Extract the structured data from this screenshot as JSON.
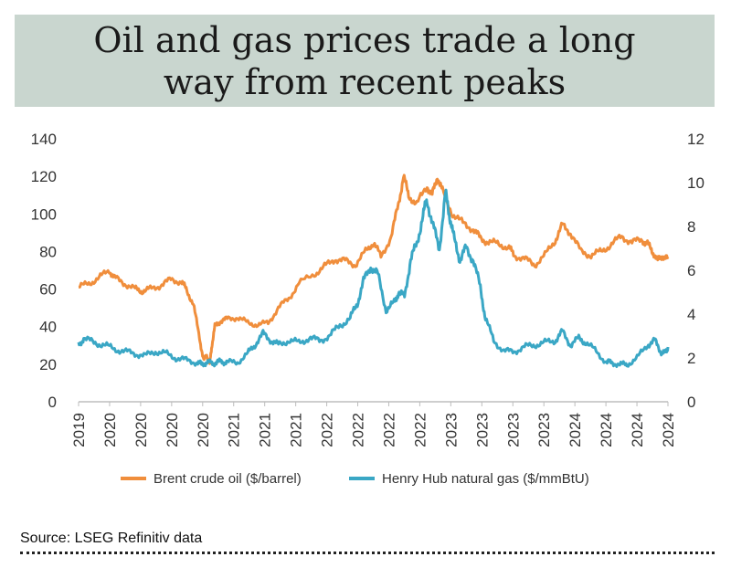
{
  "chart_data": {
    "type": "line",
    "title": "Oil and gas prices trade a long way from recent peaks",
    "x_tick_labels": [
      "2019",
      "2020",
      "2020",
      "2020",
      "2020",
      "2021",
      "2021",
      "2021",
      "2022",
      "2022",
      "2022",
      "2022",
      "2023",
      "2023",
      "2023",
      "2023",
      "2024",
      "2024",
      "2024",
      "2024"
    ],
    "x_range": [
      2019.0,
      2024.75
    ],
    "y_left": {
      "ticks": [
        0,
        20,
        40,
        60,
        80,
        100,
        120,
        140
      ],
      "range": [
        0,
        140
      ]
    },
    "y_right": {
      "ticks": [
        0,
        2,
        4,
        6,
        8,
        10,
        12
      ],
      "range": [
        0,
        12
      ]
    },
    "series": [
      {
        "name": "Brent crude oil ($/barrel)",
        "axis": "left",
        "color": "#f08e3c",
        "x": [
          2019.0,
          2019.1,
          2019.2,
          2019.3,
          2019.35,
          2019.45,
          2019.55,
          2019.62,
          2019.7,
          2019.8,
          2019.9,
          2020.0,
          2020.05,
          2020.12,
          2020.18,
          2020.22,
          2020.25,
          2020.28,
          2020.3,
          2020.33,
          2020.38,
          2020.45,
          2020.55,
          2020.65,
          2020.75,
          2020.85,
          2020.95,
          2021.05,
          2021.15,
          2021.3,
          2021.4,
          2021.5,
          2021.6,
          2021.7,
          2021.8,
          2021.88,
          2021.95,
          2022.05,
          2022.12,
          2022.17,
          2022.22,
          2022.3,
          2022.4,
          2022.45,
          2022.5,
          2022.55,
          2022.65,
          2022.75,
          2022.85,
          2022.92,
          2023.0,
          2023.1,
          2023.2,
          2023.25,
          2023.35,
          2023.45,
          2023.55,
          2023.65,
          2023.72,
          2023.8,
          2023.9,
          2024.0,
          2024.1,
          2024.2,
          2024.3,
          2024.4,
          2024.5,
          2024.55,
          2024.6,
          2024.65,
          2024.7,
          2024.75
        ],
        "values": [
          61,
          63,
          66,
          70,
          66,
          63,
          60,
          59,
          60,
          62,
          65,
          64,
          60,
          52,
          34,
          22,
          25,
          20,
          30,
          40,
          43,
          44,
          45,
          42,
          41,
          42,
          50,
          55,
          63,
          68,
          72,
          76,
          75,
          73,
          80,
          85,
          77,
          88,
          105,
          120,
          110,
          105,
          115,
          110,
          120,
          112,
          100,
          95,
          92,
          87,
          85,
          84,
          82,
          78,
          76,
          73,
          78,
          86,
          94,
          90,
          80,
          78,
          80,
          84,
          88,
          85,
          86,
          84,
          80,
          75,
          78,
          76
        ]
      },
      {
        "name": "Henry Hub natural gas ($/mmBtU)",
        "axis": "right",
        "color": "#3aa7c5",
        "x": [
          2019.0,
          2019.05,
          2019.15,
          2019.25,
          2019.35,
          2019.45,
          2019.55,
          2019.65,
          2019.75,
          2019.85,
          2019.95,
          2020.05,
          2020.15,
          2020.2,
          2020.25,
          2020.3,
          2020.35,
          2020.4,
          2020.45,
          2020.55,
          2020.65,
          2020.72,
          2020.8,
          2020.88,
          2020.95,
          2021.05,
          2021.15,
          2021.25,
          2021.35,
          2021.45,
          2021.55,
          2021.65,
          2021.72,
          2021.78,
          2021.85,
          2021.92,
          2022.0,
          2022.08,
          2022.12,
          2022.18,
          2022.24,
          2022.3,
          2022.36,
          2022.4,
          2022.46,
          2022.52,
          2022.58,
          2022.62,
          2022.66,
          2022.72,
          2022.78,
          2022.85,
          2022.92,
          2022.97,
          2023.05,
          2023.15,
          2023.25,
          2023.35,
          2023.45,
          2023.55,
          2023.65,
          2023.72,
          2023.8,
          2023.88,
          2023.95,
          2024.05,
          2024.15,
          2024.2,
          2024.28,
          2024.35,
          2024.45,
          2024.55,
          2024.62,
          2024.68,
          2024.72,
          2024.75
        ],
        "values": [
          2.6,
          2.9,
          2.7,
          2.6,
          2.4,
          2.3,
          2.2,
          2.1,
          2.3,
          2.2,
          2.0,
          1.9,
          1.8,
          1.7,
          1.8,
          1.75,
          1.8,
          1.85,
          1.8,
          1.8,
          2.2,
          2.6,
          3.1,
          2.8,
          2.6,
          2.8,
          2.7,
          2.9,
          2.8,
          3.0,
          3.5,
          3.8,
          4.5,
          5.5,
          6.2,
          5.8,
          4.2,
          4.5,
          5.0,
          4.8,
          6.5,
          7.2,
          8.5,
          9.2,
          8.0,
          7.0,
          9.5,
          8.5,
          7.5,
          6.5,
          7.0,
          6.5,
          5.2,
          3.8,
          2.8,
          2.3,
          2.3,
          2.5,
          2.6,
          2.7,
          2.8,
          3.2,
          2.6,
          2.9,
          2.7,
          2.3,
          1.8,
          1.8,
          1.7,
          1.7,
          2.0,
          2.6,
          2.8,
          2.3,
          2.2,
          2.5
        ]
      }
    ]
  },
  "header": {
    "title": "Oil and gas prices trade a long way from recent peaks"
  },
  "legend": {
    "oil_label": "Brent crude oil ($/barrel)",
    "gas_label": "Henry Hub natural gas ($/mmBtU)"
  },
  "footer": {
    "source": "Source: LSEG Refinitiv data"
  }
}
